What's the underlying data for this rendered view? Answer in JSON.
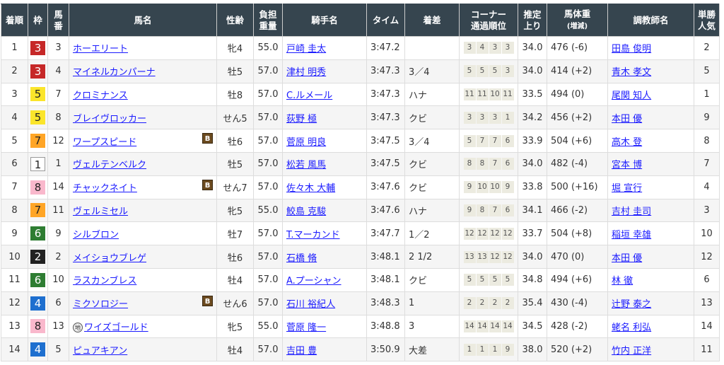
{
  "headers": {
    "rank": "着順",
    "waku": "枠",
    "umaban_1": "馬",
    "umaban_2": "番",
    "horse": "馬名",
    "sexage": "性齢",
    "weight_1": "負担",
    "weight_2": "重量",
    "jockey": "騎手名",
    "time": "タイム",
    "margin": "着差",
    "corner_1": "コーナー",
    "corner_2": "通過順位",
    "last3f_1": "推定",
    "last3f_2": "上り",
    "body_1": "馬体重",
    "body_2": "(増減)",
    "trainer": "調教師名",
    "pop_1": "単勝",
    "pop_2": "人気"
  },
  "waku_colors": {
    "1": "#ffffff",
    "2": "#222222",
    "3": "#c62828",
    "4": "#1e6fcf",
    "5": "#fbe52b",
    "6": "#2e7d32",
    "7": "#ffa526",
    "8": "#f9b8cc"
  },
  "blinker_label": "B",
  "local_label": "地",
  "rows": [
    {
      "rank": "1",
      "waku": "3",
      "num": "3",
      "horse": "ホーエリート",
      "blinker": false,
      "local": false,
      "sexage": "牝4",
      "weight": "55.0",
      "jockey": "戸崎 圭太",
      "time": "3:47.2",
      "margin": "",
      "corners": [
        "3",
        "4",
        "3",
        "3"
      ],
      "last3f": "34.0",
      "body": "476 (-6)",
      "trainer": "田島 俊明",
      "pop": "2"
    },
    {
      "rank": "2",
      "waku": "3",
      "num": "4",
      "horse": "マイネルカンパーナ",
      "blinker": false,
      "local": false,
      "sexage": "牡5",
      "weight": "57.0",
      "jockey": "津村 明秀",
      "time": "3:47.3",
      "margin": "3／4",
      "corners": [
        "5",
        "5",
        "5",
        "3"
      ],
      "last3f": "34.0",
      "body": "414 (+2)",
      "trainer": "青木 孝文",
      "pop": "5"
    },
    {
      "rank": "3",
      "waku": "5",
      "num": "7",
      "horse": "クロミナンス",
      "blinker": false,
      "local": false,
      "sexage": "牡8",
      "weight": "57.0",
      "jockey": "C.ルメール",
      "time": "3:47.3",
      "margin": "ハナ",
      "corners": [
        "11",
        "11",
        "10",
        "11"
      ],
      "last3f": "33.5",
      "body": "494 (0)",
      "trainer": "尾関 知人",
      "pop": "1"
    },
    {
      "rank": "4",
      "waku": "5",
      "num": "8",
      "horse": "ブレイヴロッカー",
      "blinker": false,
      "local": false,
      "sexage": "せん5",
      "weight": "57.0",
      "jockey": "荻野 極",
      "time": "3:47.3",
      "margin": "クビ",
      "corners": [
        "3",
        "3",
        "3",
        "1"
      ],
      "last3f": "34.2",
      "body": "456 (+2)",
      "trainer": "本田 優",
      "pop": "9"
    },
    {
      "rank": "5",
      "waku": "7",
      "num": "12",
      "horse": "ワープスピード",
      "blinker": true,
      "local": false,
      "sexage": "牡6",
      "weight": "57.0",
      "jockey": "菅原 明良",
      "time": "3:47.5",
      "margin": "3／4",
      "corners": [
        "5",
        "7",
        "7",
        "6"
      ],
      "last3f": "33.9",
      "body": "504 (+6)",
      "trainer": "高木 登",
      "pop": "8"
    },
    {
      "rank": "6",
      "waku": "1",
      "num": "1",
      "horse": "ヴェルテンベルク",
      "blinker": false,
      "local": false,
      "sexage": "牡5",
      "weight": "57.0",
      "jockey": "松若 風馬",
      "time": "3:47.5",
      "margin": "クビ",
      "corners": [
        "8",
        "8",
        "7",
        "6"
      ],
      "last3f": "34.0",
      "body": "482 (-4)",
      "trainer": "宮本 博",
      "pop": "7"
    },
    {
      "rank": "7",
      "waku": "8",
      "num": "14",
      "horse": "チャックネイト",
      "blinker": true,
      "local": false,
      "sexage": "せん7",
      "weight": "57.0",
      "jockey": "佐々木 大輔",
      "time": "3:47.6",
      "margin": "クビ",
      "corners": [
        "9",
        "10",
        "10",
        "9"
      ],
      "last3f": "33.8",
      "body": "500 (+16)",
      "trainer": "堀 宣行",
      "pop": "4"
    },
    {
      "rank": "8",
      "waku": "7",
      "num": "11",
      "horse": "ヴェルミセル",
      "blinker": false,
      "local": false,
      "sexage": "牝5",
      "weight": "55.0",
      "jockey": "鮫島 克駿",
      "time": "3:47.6",
      "margin": "ハナ",
      "corners": [
        "9",
        "8",
        "7",
        "6"
      ],
      "last3f": "34.1",
      "body": "466 (-2)",
      "trainer": "吉村 圭司",
      "pop": "3"
    },
    {
      "rank": "9",
      "waku": "6",
      "num": "9",
      "horse": "シルブロン",
      "blinker": false,
      "local": false,
      "sexage": "牡7",
      "weight": "57.0",
      "jockey": "T.マーカンド",
      "time": "3:47.7",
      "margin": "1／2",
      "corners": [
        "12",
        "12",
        "12",
        "12"
      ],
      "last3f": "33.7",
      "body": "504 (+8)",
      "trainer": "稲垣 幸雄",
      "pop": "10"
    },
    {
      "rank": "10",
      "waku": "2",
      "num": "2",
      "horse": "メイショウブレゲ",
      "blinker": false,
      "local": false,
      "sexage": "牡6",
      "weight": "57.0",
      "jockey": "石橋 脩",
      "time": "3:48.1",
      "margin": "2 1/2",
      "corners": [
        "13",
        "13",
        "12",
        "12"
      ],
      "last3f": "34.0",
      "body": "470 (0)",
      "trainer": "本田 優",
      "pop": "12"
    },
    {
      "rank": "11",
      "waku": "6",
      "num": "10",
      "horse": "ラスカンブレス",
      "blinker": false,
      "local": false,
      "sexage": "牡4",
      "weight": "57.0",
      "jockey": "A.プーシャン",
      "time": "3:48.1",
      "margin": "クビ",
      "corners": [
        "5",
        "5",
        "5",
        "5"
      ],
      "last3f": "34.8",
      "body": "494 (+6)",
      "trainer": "林 徹",
      "pop": "6"
    },
    {
      "rank": "12",
      "waku": "4",
      "num": "6",
      "horse": "ミクソロジー",
      "blinker": true,
      "local": false,
      "sexage": "せん6",
      "weight": "57.0",
      "jockey": "石川 裕紀人",
      "time": "3:48.3",
      "margin": "1",
      "corners": [
        "2",
        "2",
        "2",
        "2"
      ],
      "last3f": "35.4",
      "body": "430 (-4)",
      "trainer": "辻野 泰之",
      "pop": "13"
    },
    {
      "rank": "13",
      "waku": "8",
      "num": "13",
      "horse": "ワイズゴールド",
      "blinker": false,
      "local": true,
      "sexage": "牝5",
      "weight": "55.0",
      "jockey": "菅原 隆一",
      "time": "3:48.8",
      "margin": "3",
      "corners": [
        "14",
        "14",
        "14",
        "14"
      ],
      "last3f": "34.5",
      "body": "428 (-2)",
      "trainer": "蛯名 利弘",
      "pop": "14"
    },
    {
      "rank": "14",
      "waku": "4",
      "num": "5",
      "horse": "ピュアキアン",
      "blinker": false,
      "local": false,
      "sexage": "牡4",
      "weight": "57.0",
      "jockey": "吉田 豊",
      "time": "3:50.9",
      "margin": "大差",
      "corners": [
        "1",
        "1",
        "1",
        "9"
      ],
      "last3f": "38.0",
      "body": "520 (+2)",
      "trainer": "竹内 正洋",
      "pop": "11"
    }
  ]
}
